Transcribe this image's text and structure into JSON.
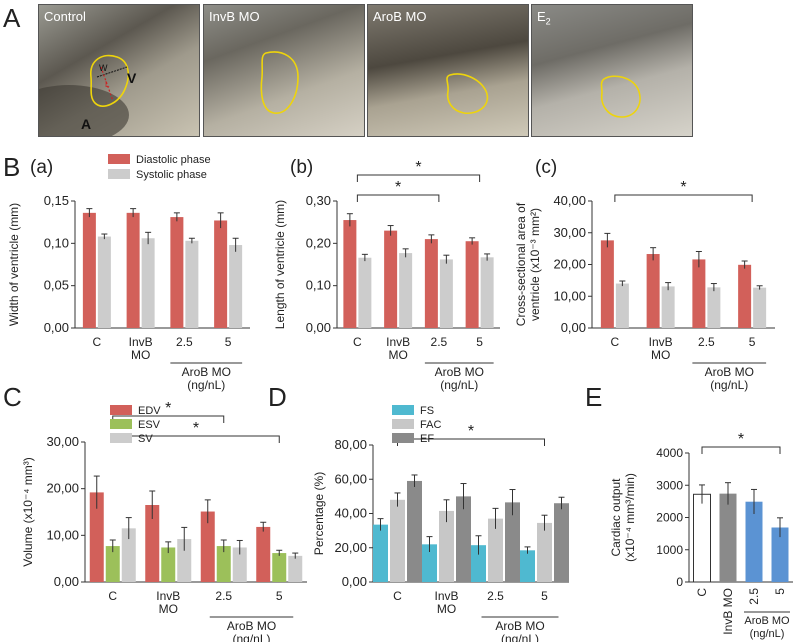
{
  "panel_letters": [
    "A",
    "B",
    "C",
    "D",
    "E"
  ],
  "subpanel_letters": [
    "(a)",
    "(b)",
    "(c)"
  ],
  "photos": [
    {
      "label": "Control",
      "sub": "",
      "annotations": [
        "W",
        "V",
        "L",
        "A"
      ]
    },
    {
      "label": "InvB MO",
      "sub": ""
    },
    {
      "label": "AroB MO",
      "sub": ""
    },
    {
      "label": "E",
      "sub": "2"
    }
  ],
  "colors": {
    "red": "#d2605a",
    "grey": "#cccccc",
    "green": "#9cc05a",
    "cyan": "#4fb9d0",
    "midgrey": "#c7c7c7",
    "darkgrey": "#8a8a8a",
    "blue": "#5b93d3",
    "outline": "#eed40c"
  },
  "chart_data": [
    {
      "id": "Ba",
      "type": "bar",
      "ylabel": "Width of ventricle (mm)",
      "yticks": [
        "0,00",
        "0,05",
        "0,10",
        "0,15"
      ],
      "ylim": [
        0,
        0.15
      ],
      "categories": [
        "C",
        "InvB\nMO",
        "2.5",
        "5"
      ],
      "group_label": "AroB MO\n(ng/nL)",
      "series": [
        {
          "name": "Diastolic phase",
          "values": [
            0.136,
            0.136,
            0.131,
            0.127
          ],
          "err": [
            0.005,
            0.005,
            0.005,
            0.009
          ]
        },
        {
          "name": "Systolic phase",
          "values": [
            0.108,
            0.106,
            0.103,
            0.098
          ],
          "err": [
            0.003,
            0.007,
            0.003,
            0.008
          ]
        }
      ],
      "sig": []
    },
    {
      "id": "Bb",
      "type": "bar",
      "ylabel": "Length of ventricle (mm)",
      "yticks": [
        "0,00",
        "0,10",
        "0,20",
        "0,30"
      ],
      "ylim": [
        0,
        0.3
      ],
      "categories": [
        "C",
        "InvB\nMO",
        "2.5",
        "5"
      ],
      "group_label": "AroB MO\n(ng/nL)",
      "series": [
        {
          "values": [
            0.255,
            0.23,
            0.21,
            0.205
          ],
          "err": [
            0.015,
            0.012,
            0.01,
            0.008
          ]
        },
        {
          "values": [
            0.166,
            0.177,
            0.162,
            0.167
          ],
          "err": [
            0.008,
            0.01,
            0.01,
            0.008
          ]
        }
      ],
      "sig": [
        {
          "from": 0,
          "to": 3,
          "label": "*"
        },
        {
          "from": 0,
          "to": 2,
          "label": "*"
        }
      ]
    },
    {
      "id": "Bc",
      "type": "bar",
      "ylabel": "Cross-sectional area of\nventricle (x10⁻³ mm²)",
      "yticks": [
        "0,00",
        "10,00",
        "20,00",
        "30,00",
        "40,00"
      ],
      "ylim": [
        0,
        40
      ],
      "categories": [
        "C",
        "InvB\nMO",
        "2.5",
        "5"
      ],
      "group_label": "AroB MO\n(ng/nL)",
      "series": [
        {
          "values": [
            27.6,
            23.3,
            21.6,
            19.9
          ],
          "err": [
            2.2,
            2.0,
            2.5,
            1.2
          ]
        },
        {
          "values": [
            14.0,
            13.1,
            12.8,
            12.7
          ],
          "err": [
            0.8,
            1.2,
            1.2,
            0.6
          ]
        }
      ],
      "sig": [
        {
          "from": 0,
          "to": 3,
          "label": "*"
        }
      ]
    },
    {
      "id": "C",
      "type": "bar",
      "ylabel": "Volume (x10⁻⁴ mm³)",
      "yticks": [
        "0,00",
        "10,00",
        "20,00",
        "30,00"
      ],
      "ylim": [
        0,
        30
      ],
      "categories": [
        "C",
        "InvB\nMO",
        "2.5",
        "5"
      ],
      "group_label": "AroB MO\n(ng/nL)",
      "series": [
        {
          "name": "EDV",
          "values": [
            19.2,
            16.5,
            15.1,
            11.8
          ],
          "err": [
            3.5,
            3.0,
            2.5,
            1.0
          ]
        },
        {
          "name": "ESV",
          "values": [
            7.7,
            7.4,
            7.7,
            6.2
          ],
          "err": [
            1.3,
            1.2,
            1.3,
            0.6
          ]
        },
        {
          "name": "SV",
          "values": [
            11.5,
            9.2,
            7.4,
            5.6
          ],
          "err": [
            2.3,
            2.5,
            1.5,
            0.6
          ]
        }
      ],
      "sig": [
        {
          "from": 0,
          "to": 2,
          "label": "*"
        },
        {
          "from": 0,
          "to": 3,
          "label": "*"
        }
      ]
    },
    {
      "id": "D",
      "type": "bar",
      "ylabel": "Percentage (%)",
      "yticks": [
        "0,00",
        "20,00",
        "40,00",
        "60,00",
        "80,00"
      ],
      "ylim": [
        0,
        80
      ],
      "categories": [
        "C",
        "InvB\nMO",
        "2.5",
        "5"
      ],
      "group_label": "AroB MO\n(ng/nL)",
      "series": [
        {
          "name": "FS",
          "values": [
            33.5,
            22.0,
            21.5,
            18.5
          ],
          "err": [
            3.5,
            4.5,
            5.5,
            2.0
          ]
        },
        {
          "name": "FAC",
          "values": [
            48.0,
            41.5,
            37.0,
            34.5
          ],
          "err": [
            4.0,
            6.5,
            6.0,
            4.5
          ]
        },
        {
          "name": "EF",
          "values": [
            59.0,
            50.0,
            46.5,
            46.0
          ],
          "err": [
            3.5,
            7.5,
            7.5,
            3.5
          ]
        }
      ],
      "sig": [
        {
          "from": 0,
          "to": 3,
          "label": "*"
        }
      ]
    },
    {
      "id": "E",
      "type": "bar",
      "ylabel": "Cardiac output\n(x10⁻⁴ mm³/min)",
      "yticks": [
        "0",
        "1000",
        "2000",
        "3000",
        "4000"
      ],
      "ylim": [
        0,
        4000
      ],
      "categories": [
        "C",
        "InvB MO",
        "2.5",
        "5"
      ],
      "group_label": "AroB MO\n(ng/nL)",
      "values": [
        2720,
        2740,
        2490,
        1690
      ],
      "err": [
        290,
        340,
        380,
        300
      ],
      "sig": [
        {
          "from": 0,
          "to": 3,
          "label": "*"
        }
      ]
    }
  ]
}
